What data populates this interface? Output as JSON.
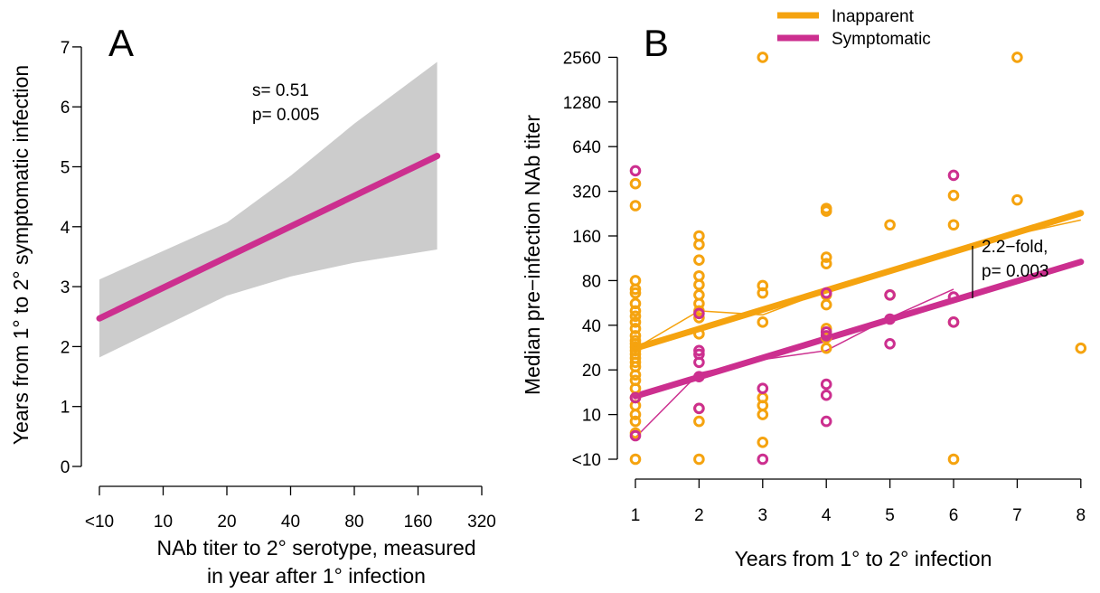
{
  "colors": {
    "inapparent": "#F5A30F",
    "symptomatic": "#CC2F8F",
    "band": "#CCCCCC",
    "axis": "#000000"
  },
  "chart_data": [
    {
      "panel": "A",
      "type": "line",
      "panel_label": "A",
      "ylabel": "Years from  1° to  2° symptomatic infection",
      "xlabel_line1": "NAb titer to 2° serotype, measured",
      "xlabel_line2": "in year after 1° infection",
      "x_ticks": [
        "<10",
        "10",
        "20",
        "40",
        "80",
        "160",
        "320"
      ],
      "x_tick_index": [
        0,
        1,
        2,
        3,
        4,
        5,
        6
      ],
      "y_ticks": [
        "0",
        "1",
        "2",
        "3",
        "4",
        "5",
        "6",
        "7"
      ],
      "ylim": [
        0,
        7
      ],
      "annotation_s": "s= 0.51",
      "annotation_p": "p= 0.005",
      "fit": {
        "x": [
          0,
          5.3
        ],
        "y": [
          2.47,
          5.18
        ]
      },
      "band": {
        "x": [
          0,
          2,
          3,
          4,
          5.3
        ],
        "upper": [
          3.12,
          4.07,
          4.85,
          5.72,
          6.75
        ],
        "lower": [
          1.82,
          2.85,
          3.17,
          3.4,
          3.62
        ]
      }
    },
    {
      "panel": "B",
      "type": "scatter",
      "panel_label": "B",
      "ylabel": "Median pre−infection NAb titer",
      "xlabel": "Years from  1° to  2° infection",
      "x_ticks": [
        "1",
        "2",
        "3",
        "4",
        "5",
        "6",
        "7",
        "8"
      ],
      "xlim": [
        1,
        8
      ],
      "y_ticks": [
        "<10",
        "10",
        "20",
        "40",
        "80",
        "160",
        "320",
        "640",
        "1280",
        "2560"
      ],
      "y_scale": "log2",
      "legend": {
        "position": "top",
        "entries": [
          "Inapparent",
          "Symptomatic"
        ]
      },
      "annotation_fold": "2.2−fold,",
      "annotation_p": "p= 0.003",
      "series": [
        {
          "name": "Inapparent",
          "points": [
            [
              1,
              5
            ],
            [
              1,
              7.5
            ],
            [
              1,
              9
            ],
            [
              1,
              10
            ],
            [
              1,
              11.5
            ],
            [
              1,
              13
            ],
            [
              1,
              15
            ],
            [
              1,
              17
            ],
            [
              1,
              18.5
            ],
            [
              1,
              21
            ],
            [
              1,
              22.5
            ],
            [
              1,
              24
            ],
            [
              1,
              25.5
            ],
            [
              1,
              27
            ],
            [
              1,
              28.5
            ],
            [
              1,
              30
            ],
            [
              1,
              31.5
            ],
            [
              1,
              34
            ],
            [
              1,
              38
            ],
            [
              1,
              42
            ],
            [
              1,
              46
            ],
            [
              1,
              50
            ],
            [
              1,
              56
            ],
            [
              1,
              66
            ],
            [
              1,
              70
            ],
            [
              1,
              80
            ],
            [
              1,
              256
            ],
            [
              1,
              360
            ],
            [
              2,
              5
            ],
            [
              2,
              9
            ],
            [
              2,
              11
            ],
            [
              2,
              35
            ],
            [
              2,
              45
            ],
            [
              2,
              50
            ],
            [
              2,
              56
            ],
            [
              2,
              64
            ],
            [
              2,
              75
            ],
            [
              2,
              86
            ],
            [
              2,
              110
            ],
            [
              2,
              140
            ],
            [
              2,
              160
            ],
            [
              3,
              6.5
            ],
            [
              3,
              10
            ],
            [
              3,
              11.5
            ],
            [
              3,
              13
            ],
            [
              3,
              42
            ],
            [
              3,
              66
            ],
            [
              3,
              74
            ],
            [
              3,
              2560
            ],
            [
              4,
              28
            ],
            [
              4,
              33
            ],
            [
              4,
              38
            ],
            [
              4,
              55
            ],
            [
              4,
              64
            ],
            [
              4,
              104
            ],
            [
              4,
              115
            ],
            [
              4,
              235
            ],
            [
              4,
              245
            ],
            [
              5,
              64
            ],
            [
              5,
              190
            ],
            [
              6,
              5
            ],
            [
              6,
              42
            ],
            [
              6,
              190
            ],
            [
              6,
              300
            ],
            [
              7,
              280
            ],
            [
              7,
              2560
            ],
            [
              8,
              28
            ]
          ],
          "fit": {
            "x": [
              1,
              8
            ],
            "y": [
              28,
              228
            ]
          },
          "means": {
            "x": [
              1,
              2,
              3,
              4,
              5,
              6,
              7,
              8
            ],
            "y": [
              28,
              50,
              47,
              68,
              94,
              125,
              165,
              205
            ]
          }
        },
        {
          "name": "Symptomatic",
          "points": [
            [
              1,
              7.2
            ],
            [
              1,
              13
            ],
            [
              1,
              440
            ],
            [
              2,
              11
            ],
            [
              2,
              18
            ],
            [
              2,
              22.5
            ],
            [
              2,
              25.5
            ],
            [
              2,
              27
            ],
            [
              2,
              48
            ],
            [
              3,
              5
            ],
            [
              3,
              15
            ],
            [
              4,
              9
            ],
            [
              4,
              13.5
            ],
            [
              4,
              16
            ],
            [
              4,
              34
            ],
            [
              4,
              36
            ],
            [
              4,
              66
            ],
            [
              5,
              30
            ],
            [
              5,
              44
            ],
            [
              5,
              64
            ],
            [
              6,
              42
            ],
            [
              6,
              62
            ],
            [
              6,
              410
            ]
          ],
          "fit": {
            "x": [
              1,
              8
            ],
            "y": [
              13.3,
              107
            ]
          },
          "means": {
            "x": [
              1,
              2,
              3,
              4,
              5,
              6
            ],
            "y": [
              7,
              19,
              23.5,
              27,
              45,
              70
            ]
          }
        }
      ]
    }
  ]
}
